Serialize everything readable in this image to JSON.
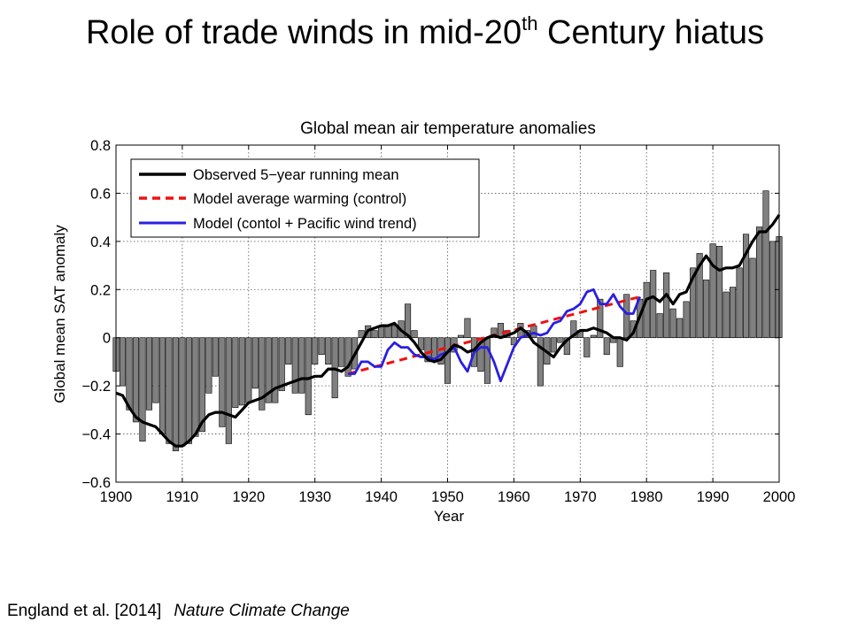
{
  "slide": {
    "title_main": "Role of trade winds in mid-20",
    "title_sup": "th",
    "title_rest": " Century hiatus",
    "citation_authors": "England et al. [2014]",
    "citation_journal": "Nature Climate Change"
  },
  "chart_data": {
    "type": "bar",
    "title": "Global mean air temperature anomalies",
    "xlabel": "Year",
    "ylabel": "Global mean SAT anomaly",
    "xlim": [
      1900,
      2000
    ],
    "ylim": [
      -0.6,
      0.8
    ],
    "xticks": [
      1900,
      1910,
      1920,
      1930,
      1940,
      1950,
      1960,
      1970,
      1980,
      1990,
      2000
    ],
    "yticks": [
      -0.6,
      -0.4,
      -0.2,
      0,
      0.2,
      0.4,
      0.6,
      0.8
    ],
    "ytick_labels": [
      "−0.6",
      "−0.4",
      "−0.2",
      "0",
      "0.2",
      "0.4",
      "0.6",
      "0.8"
    ],
    "grid": true,
    "legend_position": "top-left",
    "bar_color": "#808080",
    "bars": {
      "years": [
        1900,
        1901,
        1902,
        1903,
        1904,
        1905,
        1906,
        1907,
        1908,
        1909,
        1910,
        1911,
        1912,
        1913,
        1914,
        1915,
        1916,
        1917,
        1918,
        1919,
        1920,
        1921,
        1922,
        1923,
        1924,
        1925,
        1926,
        1927,
        1928,
        1929,
        1930,
        1931,
        1932,
        1933,
        1934,
        1935,
        1936,
        1937,
        1938,
        1939,
        1940,
        1941,
        1942,
        1943,
        1944,
        1945,
        1946,
        1947,
        1948,
        1949,
        1950,
        1951,
        1952,
        1953,
        1954,
        1955,
        1956,
        1957,
        1958,
        1959,
        1960,
        1961,
        1962,
        1963,
        1964,
        1965,
        1966,
        1967,
        1968,
        1969,
        1970,
        1971,
        1972,
        1973,
        1974,
        1975,
        1976,
        1977,
        1978,
        1979,
        1980,
        1981,
        1982,
        1983,
        1984,
        1985,
        1986,
        1987,
        1988,
        1989,
        1990,
        1991,
        1992,
        1993,
        1994,
        1995,
        1996,
        1997,
        1998,
        1999,
        2000
      ],
      "values": [
        -0.14,
        -0.2,
        -0.3,
        -0.35,
        -0.43,
        -0.3,
        -0.27,
        -0.4,
        -0.44,
        -0.47,
        -0.45,
        -0.44,
        -0.41,
        -0.39,
        -0.23,
        -0.16,
        -0.37,
        -0.44,
        -0.29,
        -0.28,
        -0.27,
        -0.21,
        -0.3,
        -0.27,
        -0.27,
        -0.22,
        -0.11,
        -0.23,
        -0.23,
        -0.32,
        -0.11,
        -0.07,
        -0.11,
        -0.25,
        -0.12,
        -0.16,
        -0.13,
        0.03,
        0.05,
        0.03,
        0.05,
        0.05,
        0.05,
        0.07,
        0.14,
        0.03,
        -0.05,
        -0.1,
        -0.1,
        -0.11,
        -0.19,
        -0.06,
        0.01,
        0.08,
        -0.12,
        -0.14,
        -0.19,
        0.04,
        0.06,
        0.03,
        -0.03,
        0.06,
        0.03,
        0.05,
        -0.2,
        -0.11,
        -0.06,
        -0.02,
        -0.07,
        0.07,
        0.03,
        -0.08,
        0.01,
        0.16,
        -0.07,
        -0.02,
        -0.12,
        0.18,
        0.07,
        0.16,
        0.23,
        0.28,
        0.1,
        0.27,
        0.12,
        0.08,
        0.15,
        0.29,
        0.35,
        0.24,
        0.39,
        0.38,
        0.19,
        0.21,
        0.29,
        0.43,
        0.33,
        0.46,
        0.61,
        0.4,
        0.42
      ]
    },
    "series": [
      {
        "name": "Observed 5−year running mean",
        "color": "#000000",
        "style": "solid",
        "x": [
          1900,
          1901,
          1902,
          1903,
          1904,
          1905,
          1906,
          1907,
          1908,
          1909,
          1910,
          1911,
          1912,
          1913,
          1914,
          1915,
          1916,
          1917,
          1918,
          1919,
          1920,
          1921,
          1922,
          1923,
          1924,
          1925,
          1926,
          1927,
          1928,
          1929,
          1930,
          1931,
          1932,
          1933,
          1934,
          1935,
          1936,
          1937,
          1938,
          1939,
          1940,
          1941,
          1942,
          1943,
          1944,
          1945,
          1946,
          1947,
          1948,
          1949,
          1950,
          1951,
          1952,
          1953,
          1954,
          1955,
          1956,
          1957,
          1958,
          1959,
          1960,
          1961,
          1962,
          1963,
          1964,
          1965,
          1966,
          1967,
          1968,
          1969,
          1970,
          1971,
          1972,
          1973,
          1974,
          1975,
          1976,
          1977,
          1978,
          1979,
          1980,
          1981,
          1982,
          1983,
          1984,
          1985,
          1986,
          1987,
          1988,
          1989,
          1990,
          1991,
          1992,
          1993,
          1994,
          1995,
          1996,
          1997,
          1998,
          1999,
          2000
        ],
        "y": [
          -0.23,
          -0.24,
          -0.29,
          -0.33,
          -0.35,
          -0.36,
          -0.37,
          -0.4,
          -0.43,
          -0.45,
          -0.45,
          -0.43,
          -0.4,
          -0.35,
          -0.32,
          -0.31,
          -0.31,
          -0.32,
          -0.33,
          -0.3,
          -0.27,
          -0.26,
          -0.25,
          -0.23,
          -0.21,
          -0.2,
          -0.19,
          -0.18,
          -0.17,
          -0.17,
          -0.16,
          -0.16,
          -0.13,
          -0.13,
          -0.14,
          -0.12,
          -0.07,
          -0.02,
          0.03,
          0.04,
          0.05,
          0.05,
          0.06,
          0.03,
          0.01,
          -0.02,
          -0.06,
          -0.09,
          -0.1,
          -0.09,
          -0.06,
          -0.03,
          -0.04,
          -0.06,
          -0.05,
          -0.02,
          0.0,
          0.01,
          0.0,
          0.01,
          0.02,
          0.04,
          0.02,
          -0.02,
          -0.04,
          -0.06,
          -0.08,
          -0.04,
          -0.01,
          0.01,
          0.03,
          0.03,
          0.04,
          0.03,
          0.02,
          0.0,
          0.0,
          -0.01,
          0.02,
          0.09,
          0.16,
          0.17,
          0.15,
          0.18,
          0.14,
          0.18,
          0.19,
          0.25,
          0.3,
          0.34,
          0.3,
          0.28,
          0.29,
          0.29,
          0.3,
          0.35,
          0.4,
          0.44,
          0.44,
          0.47,
          0.51
        ]
      },
      {
        "name": "Model average warming (control)",
        "color": "#ee1111",
        "style": "dashed",
        "x": [
          1935,
          1979
        ],
        "y": [
          -0.15,
          0.17
        ]
      },
      {
        "name": "Model (contol + Pacific wind trend)",
        "color": "#2a1fe0",
        "style": "solid",
        "x": [
          1935,
          1936,
          1937,
          1938,
          1939,
          1940,
          1941,
          1942,
          1943,
          1944,
          1945,
          1946,
          1947,
          1948,
          1949,
          1950,
          1951,
          1952,
          1953,
          1954,
          1955,
          1956,
          1957,
          1958,
          1959,
          1960,
          1961,
          1962,
          1963,
          1964,
          1965,
          1966,
          1967,
          1968,
          1969,
          1970,
          1971,
          1972,
          1973,
          1974,
          1975,
          1976,
          1977,
          1978,
          1979
        ],
        "y": [
          -0.15,
          -0.15,
          -0.1,
          -0.1,
          -0.12,
          -0.12,
          -0.05,
          -0.02,
          -0.04,
          -0.04,
          -0.07,
          -0.08,
          -0.08,
          -0.09,
          -0.07,
          -0.06,
          -0.04,
          -0.1,
          -0.14,
          -0.06,
          -0.04,
          -0.04,
          -0.1,
          -0.18,
          -0.11,
          -0.04,
          0.0,
          0.01,
          0.02,
          0.01,
          0.02,
          0.06,
          0.07,
          0.11,
          0.12,
          0.14,
          0.19,
          0.2,
          0.14,
          0.14,
          0.18,
          0.13,
          0.1,
          0.1,
          0.17
        ]
      }
    ]
  }
}
